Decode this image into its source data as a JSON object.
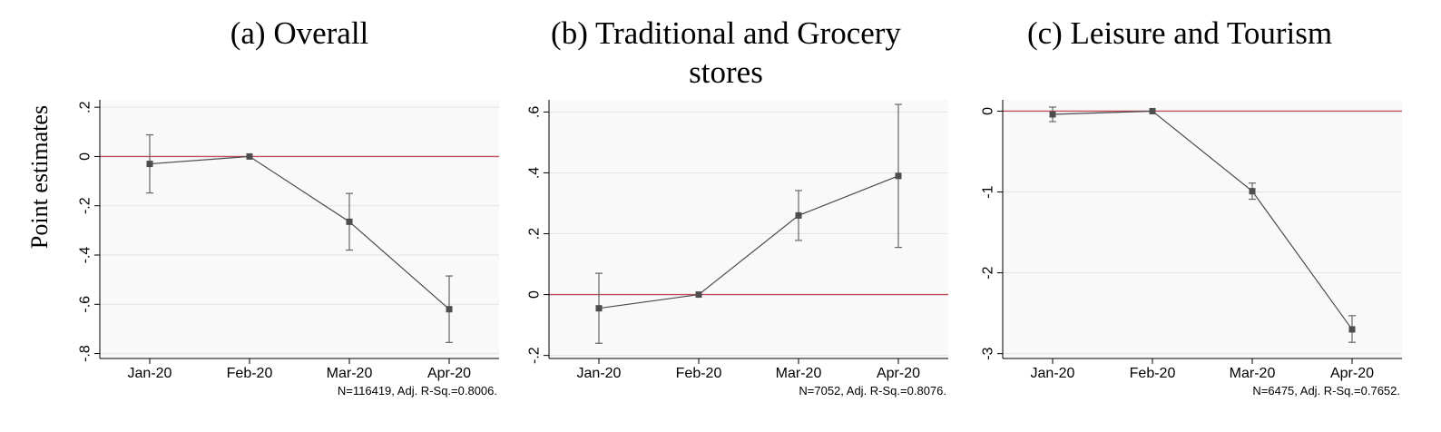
{
  "figure": {
    "ylabel": "Point estimates"
  },
  "colors": {
    "plot_bg": "#f9f9f9",
    "grid": "#e3e3e3",
    "zero_line": "#c0505a",
    "series": "#4a4a4a",
    "marker": "#4d4d4d",
    "error_bar": "#666666"
  },
  "chart_data": [
    {
      "type": "line",
      "title": "(a) Overall",
      "categories": [
        "Jan-20",
        "Feb-20",
        "Mar-20",
        "Apr-20"
      ],
      "series": [
        {
          "values": [
            -0.03,
            0.0,
            -0.265,
            -0.62
          ]
        }
      ],
      "ci_lower": [
        -0.148,
        0.0,
        -0.38,
        -0.755
      ],
      "ci_upper": [
        0.088,
        0.0,
        -0.15,
        -0.485
      ],
      "yticks": [
        0.2,
        0,
        -0.2,
        -0.4,
        -0.6,
        -0.8
      ],
      "ytick_labels": [
        ".2",
        "0",
        "-.2",
        "-.4",
        "-.6",
        "-.8"
      ],
      "ylim": [
        -0.82,
        0.23
      ],
      "reference_line": 0,
      "grid": true,
      "note": "N=116419, Adj. R-Sq.=0.8006."
    },
    {
      "type": "line",
      "title": "(b) Traditional and Grocery stores",
      "title_lines": [
        "(b) Traditional and Grocery",
        "stores"
      ],
      "categories": [
        "Jan-20",
        "Feb-20",
        "Mar-20",
        "Apr-20"
      ],
      "series": [
        {
          "values": [
            -0.045,
            0.0,
            0.26,
            0.39
          ]
        }
      ],
      "ci_lower": [
        -0.16,
        0.0,
        0.178,
        0.155
      ],
      "ci_upper": [
        0.07,
        0.0,
        0.342,
        0.625
      ],
      "yticks": [
        0.6,
        0.4,
        0.2,
        0,
        -0.2
      ],
      "ytick_labels": [
        ".6",
        ".4",
        ".2",
        "0",
        "-.2"
      ],
      "ylim": [
        -0.21,
        0.64
      ],
      "reference_line": 0,
      "grid": true,
      "note": "N=7052, Adj. R-Sq.=0.8076."
    },
    {
      "type": "line",
      "title": "(c) Leisure and Tourism",
      "categories": [
        "Jan-20",
        "Feb-20",
        "Mar-20",
        "Apr-20"
      ],
      "series": [
        {
          "values": [
            -0.04,
            0.0,
            -0.99,
            -2.7
          ]
        }
      ],
      "ci_lower": [
        -0.13,
        0.0,
        -1.09,
        -2.86
      ],
      "ci_upper": [
        0.05,
        0.0,
        -0.89,
        -2.53
      ],
      "yticks": [
        0,
        -1,
        -2,
        -3
      ],
      "ytick_labels": [
        "0",
        "-1",
        "-2",
        "-3"
      ],
      "ylim": [
        -3.06,
        0.14
      ],
      "reference_line": 0,
      "grid": true,
      "note": "N=6475, Adj. R-Sq.=0.7652."
    }
  ]
}
